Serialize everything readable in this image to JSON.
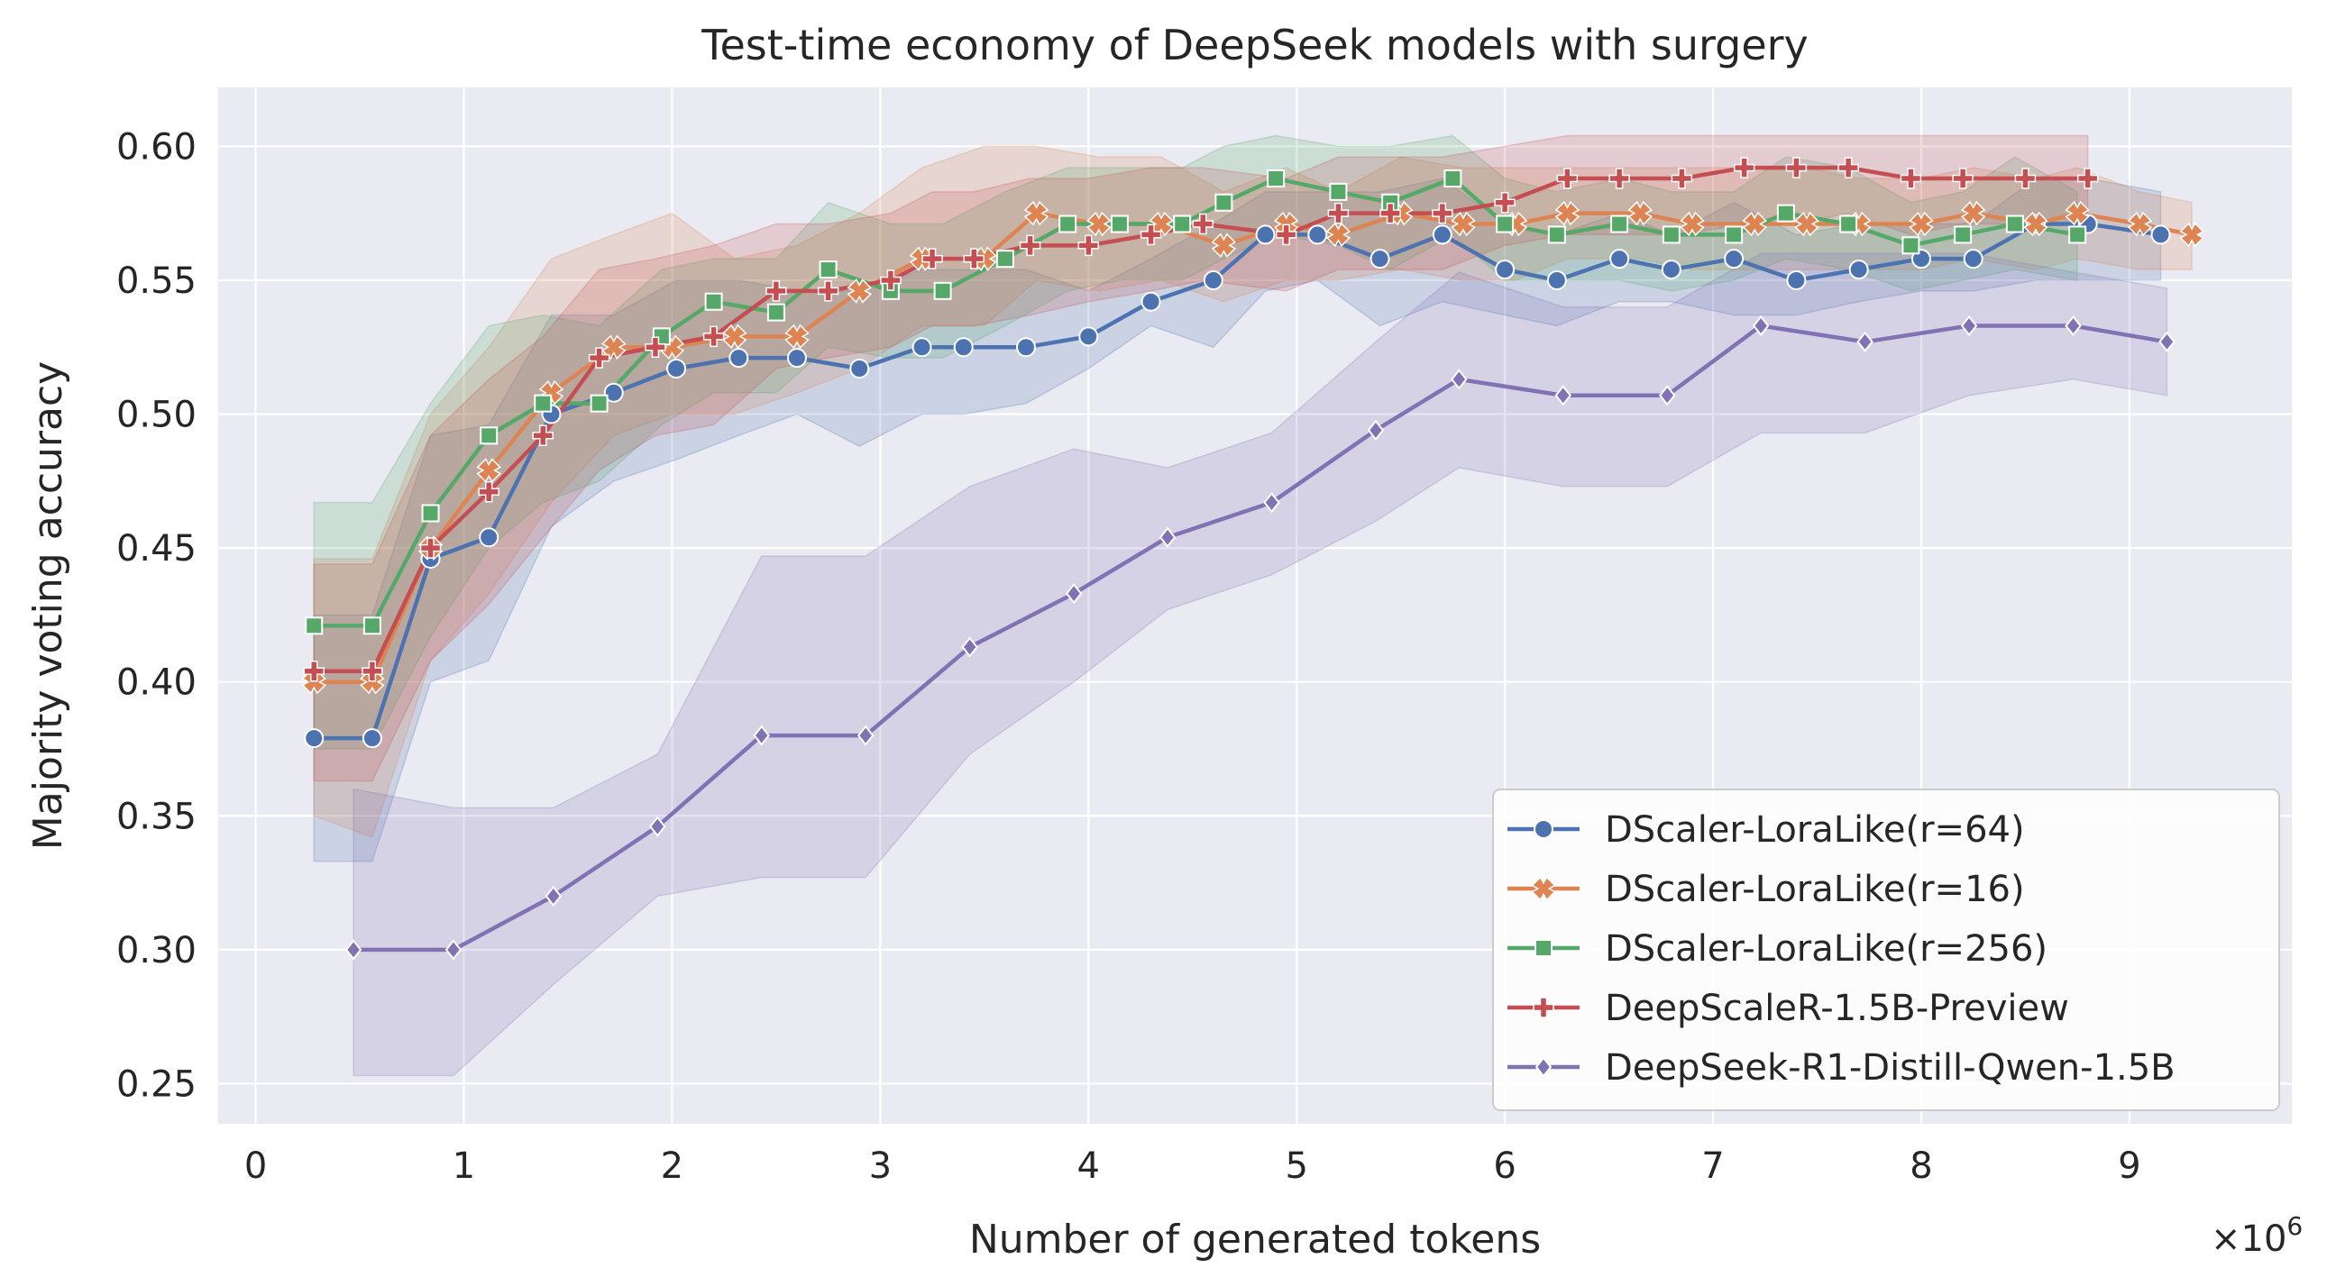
{
  "chart_data": {
    "type": "line",
    "title": "Test-time economy of DeepSeek models with surgery",
    "xlabel": "Number of generated tokens",
    "ylabel": "Majority voting accuracy",
    "x_multiplier": "×10",
    "x_multiplier_exp": "6",
    "xlim": [
      -0.18,
      9.78
    ],
    "ylim": [
      0.235,
      0.622
    ],
    "xticks": [
      0,
      1,
      2,
      3,
      4,
      5,
      6,
      7,
      8,
      9
    ],
    "yticks": [
      0.25,
      0.3,
      0.35,
      0.4,
      0.45,
      0.5,
      0.55,
      0.6
    ],
    "xtick_labels": [
      "0",
      "1",
      "2",
      "3",
      "4",
      "5",
      "6",
      "7",
      "8",
      "9"
    ],
    "ytick_labels": [
      "0.25",
      "0.30",
      "0.35",
      "0.40",
      "0.45",
      "0.50",
      "0.55",
      "0.60"
    ],
    "grid": true,
    "legend_position": "lower-right",
    "series": [
      {
        "name": "DScaler-LoraLike(r=64)",
        "color": "#4c72b0",
        "marker": "circle",
        "x": [
          0.28,
          0.56,
          0.84,
          1.12,
          1.42,
          1.72,
          2.02,
          2.32,
          2.6,
          2.9,
          3.2,
          3.4,
          3.7,
          4.0,
          4.3,
          4.6,
          4.85,
          5.1,
          5.4,
          5.7,
          6.0,
          6.25,
          6.55,
          6.8,
          7.1,
          7.4,
          7.7,
          8.0,
          8.25,
          8.55,
          8.8,
          9.15
        ],
        "y": [
          0.379,
          0.379,
          0.446,
          0.454,
          0.5,
          0.508,
          0.517,
          0.521,
          0.521,
          0.517,
          0.525,
          0.525,
          0.525,
          0.529,
          0.542,
          0.55,
          0.567,
          0.567,
          0.558,
          0.567,
          0.554,
          0.55,
          0.558,
          0.554,
          0.558,
          0.55,
          0.554,
          0.558,
          0.558,
          0.571,
          0.571,
          0.567
        ],
        "ci_low": [
          0.333,
          0.333,
          0.4,
          0.408,
          0.458,
          0.475,
          0.483,
          0.492,
          0.5,
          0.488,
          0.5,
          0.5,
          0.504,
          0.517,
          0.533,
          0.525,
          0.546,
          0.55,
          0.533,
          0.542,
          0.537,
          0.533,
          0.542,
          0.542,
          0.537,
          0.537,
          0.542,
          0.546,
          0.546,
          0.55,
          0.55,
          0.55
        ],
        "ci_high": [
          0.425,
          0.425,
          0.492,
          0.496,
          0.537,
          0.537,
          0.55,
          0.55,
          0.546,
          0.546,
          0.554,
          0.554,
          0.554,
          0.546,
          0.558,
          0.571,
          0.583,
          0.583,
          0.583,
          0.588,
          0.571,
          0.567,
          0.575,
          0.567,
          0.579,
          0.567,
          0.571,
          0.571,
          0.571,
          0.588,
          0.588,
          0.583
        ]
      },
      {
        "name": "DScaler-LoraLike(r=16)",
        "color": "#dd8452",
        "marker": "x",
        "x": [
          0.28,
          0.56,
          0.84,
          1.12,
          1.42,
          1.72,
          2.0,
          2.3,
          2.6,
          2.9,
          3.2,
          3.5,
          3.75,
          4.05,
          4.35,
          4.65,
          4.95,
          5.2,
          5.5,
          5.8,
          6.05,
          6.3,
          6.65,
          6.9,
          7.2,
          7.45,
          7.7,
          8.0,
          8.25,
          8.55,
          8.75,
          9.05,
          9.3
        ],
        "y": [
          0.4,
          0.4,
          0.45,
          0.479,
          0.508,
          0.525,
          0.525,
          0.529,
          0.529,
          0.546,
          0.558,
          0.558,
          0.575,
          0.571,
          0.571,
          0.563,
          0.571,
          0.567,
          0.575,
          0.571,
          0.571,
          0.575,
          0.575,
          0.571,
          0.571,
          0.571,
          0.571,
          0.571,
          0.575,
          0.571,
          0.575,
          0.571,
          0.567
        ],
        "ci_low": [
          0.35,
          0.342,
          0.408,
          0.433,
          0.467,
          0.492,
          0.5,
          0.5,
          0.508,
          0.517,
          0.533,
          0.533,
          0.55,
          0.546,
          0.55,
          0.542,
          0.55,
          0.55,
          0.554,
          0.55,
          0.55,
          0.558,
          0.558,
          0.554,
          0.554,
          0.554,
          0.554,
          0.554,
          0.558,
          0.554,
          0.558,
          0.554,
          0.554
        ],
        "ci_high": [
          0.446,
          0.446,
          0.5,
          0.525,
          0.558,
          0.567,
          0.575,
          0.558,
          0.563,
          0.575,
          0.592,
          0.6,
          0.6,
          0.596,
          0.596,
          0.583,
          0.592,
          0.583,
          0.596,
          0.592,
          0.592,
          0.592,
          0.592,
          0.592,
          0.592,
          0.592,
          0.588,
          0.588,
          0.592,
          0.588,
          0.592,
          0.583,
          0.579
        ]
      },
      {
        "name": "DScaler-LoraLike(r=256)",
        "color": "#55a868",
        "marker": "square",
        "x": [
          0.28,
          0.56,
          0.84,
          1.12,
          1.38,
          1.65,
          1.95,
          2.2,
          2.5,
          2.75,
          3.05,
          3.3,
          3.6,
          3.9,
          4.15,
          4.45,
          4.65,
          4.9,
          5.2,
          5.45,
          5.75,
          6.0,
          6.25,
          6.55,
          6.8,
          7.1,
          7.35,
          7.65,
          7.95,
          8.2,
          8.45,
          8.75
        ],
        "y": [
          0.421,
          0.421,
          0.463,
          0.492,
          0.504,
          0.504,
          0.529,
          0.542,
          0.538,
          0.554,
          0.546,
          0.546,
          0.558,
          0.571,
          0.571,
          0.571,
          0.579,
          0.588,
          0.583,
          0.579,
          0.588,
          0.571,
          0.567,
          0.571,
          0.567,
          0.567,
          0.575,
          0.571,
          0.563,
          0.567,
          0.571,
          0.567
        ],
        "ci_low": [
          0.375,
          0.375,
          0.417,
          0.45,
          0.467,
          0.475,
          0.496,
          0.508,
          0.508,
          0.525,
          0.521,
          0.521,
          0.533,
          0.546,
          0.55,
          0.55,
          0.558,
          0.567,
          0.563,
          0.554,
          0.567,
          0.55,
          0.55,
          0.55,
          0.546,
          0.55,
          0.558,
          0.554,
          0.546,
          0.55,
          0.554,
          0.55
        ],
        "ci_high": [
          0.467,
          0.467,
          0.504,
          0.533,
          0.537,
          0.533,
          0.554,
          0.558,
          0.558,
          0.579,
          0.571,
          0.571,
          0.583,
          0.592,
          0.592,
          0.592,
          0.6,
          0.604,
          0.6,
          0.6,
          0.604,
          0.588,
          0.583,
          0.588,
          0.583,
          0.583,
          0.596,
          0.592,
          0.579,
          0.583,
          0.596,
          0.583
        ]
      },
      {
        "name": "DeepScaleR-1.5B-Preview",
        "color": "#c44e52",
        "marker": "plus",
        "x": [
          0.28,
          0.56,
          0.84,
          1.12,
          1.38,
          1.65,
          1.92,
          2.2,
          2.5,
          2.75,
          3.05,
          3.25,
          3.45,
          3.72,
          4.0,
          4.3,
          4.55,
          4.95,
          5.2,
          5.45,
          5.7,
          6.0,
          6.3,
          6.55,
          6.85,
          7.15,
          7.4,
          7.65,
          7.95,
          8.2,
          8.5,
          8.8
        ],
        "y": [
          0.404,
          0.404,
          0.45,
          0.471,
          0.492,
          0.521,
          0.525,
          0.529,
          0.546,
          0.546,
          0.55,
          0.558,
          0.558,
          0.563,
          0.563,
          0.567,
          0.571,
          0.567,
          0.575,
          0.575,
          0.575,
          0.579,
          0.588,
          0.588,
          0.588,
          0.592,
          0.592,
          0.592,
          0.588,
          0.588,
          0.588,
          0.588
        ],
        "ci_low": [
          0.363,
          0.363,
          0.408,
          0.429,
          0.454,
          0.479,
          0.492,
          0.496,
          0.517,
          0.521,
          0.525,
          0.533,
          0.533,
          0.537,
          0.542,
          0.546,
          0.55,
          0.546,
          0.554,
          0.554,
          0.554,
          0.563,
          0.567,
          0.567,
          0.567,
          0.571,
          0.571,
          0.575,
          0.567,
          0.571,
          0.571,
          0.571
        ],
        "ci_high": [
          0.444,
          0.444,
          0.492,
          0.513,
          0.529,
          0.554,
          0.558,
          0.563,
          0.571,
          0.571,
          0.575,
          0.583,
          0.583,
          0.588,
          0.588,
          0.592,
          0.592,
          0.588,
          0.596,
          0.596,
          0.596,
          0.6,
          0.604,
          0.604,
          0.604,
          0.604,
          0.604,
          0.604,
          0.604,
          0.604,
          0.604,
          0.604
        ]
      },
      {
        "name": "DeepSeek-R1-Distill-Qwen-1.5B",
        "color": "#8172b3",
        "marker": "diamond",
        "x": [
          0.47,
          0.95,
          1.43,
          1.93,
          2.43,
          2.93,
          3.43,
          3.93,
          4.38,
          4.88,
          5.38,
          5.78,
          6.28,
          6.78,
          7.23,
          7.73,
          8.23,
          8.73,
          9.18
        ],
        "y": [
          0.3,
          0.3,
          0.32,
          0.346,
          0.38,
          0.38,
          0.413,
          0.433,
          0.454,
          0.467,
          0.494,
          0.513,
          0.507,
          0.507,
          0.533,
          0.527,
          0.533,
          0.533,
          0.527
        ],
        "ci_low": [
          0.253,
          0.253,
          0.287,
          0.32,
          0.327,
          0.327,
          0.373,
          0.4,
          0.427,
          0.44,
          0.46,
          0.48,
          0.473,
          0.473,
          0.493,
          0.493,
          0.507,
          0.513,
          0.507
        ],
        "ci_high": [
          0.36,
          0.353,
          0.353,
          0.373,
          0.447,
          0.447,
          0.473,
          0.487,
          0.48,
          0.493,
          0.527,
          0.553,
          0.54,
          0.54,
          0.56,
          0.56,
          0.56,
          0.553,
          0.547
        ]
      }
    ]
  }
}
